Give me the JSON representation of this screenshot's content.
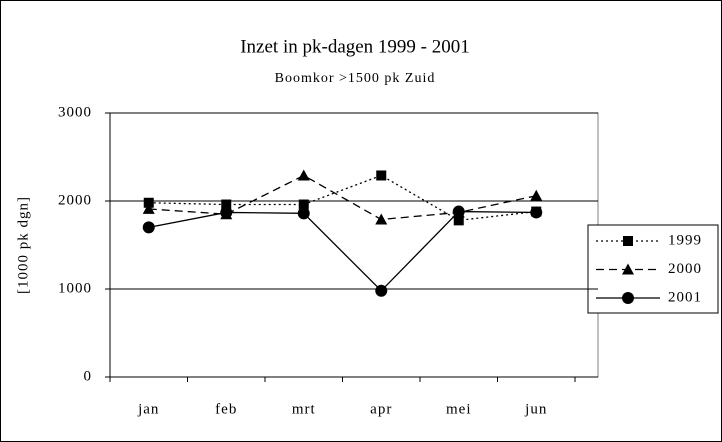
{
  "chart_data": {
    "type": "line",
    "title": "Inzet in pk-dagen 1999 - 2001",
    "subtitle": "Boomkor >1500 pk Zuid",
    "y_label": "[1000 pk dgn]",
    "categories": [
      "jan",
      "feb",
      "mrt",
      "apr",
      "mei",
      "jun"
    ],
    "series": [
      {
        "name": "1999",
        "color": "#000000",
        "dash": "2,3",
        "marker": "square",
        "values": [
          1980,
          1960,
          1960,
          2290,
          1780,
          1880
        ]
      },
      {
        "name": "2000",
        "color": "#000000",
        "dash": "8,5",
        "marker": "triangle",
        "values": [
          1910,
          1850,
          2290,
          1790,
          1870,
          2060
        ]
      },
      {
        "name": "2001",
        "color": "#000000",
        "dash": "none",
        "marker": "circle",
        "values": [
          1700,
          1870,
          1860,
          980,
          1880,
          1870
        ]
      }
    ],
    "ylim": [
      0,
      3000
    ],
    "yticks": [
      0,
      1000,
      2000,
      3000
    ],
    "grid": true,
    "legend": "right"
  }
}
